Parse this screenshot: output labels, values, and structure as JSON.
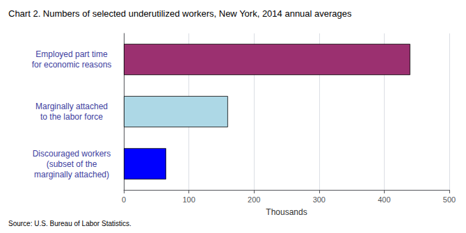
{
  "chart_data": {
    "type": "bar",
    "orientation": "horizontal",
    "title": "Chart 2. Numbers of selected underutilized workers, New York, 2014 annual averages",
    "source": "Source: U.S. Bureau of Labor Statistics.",
    "categories": [
      "Discouraged workers\n(subset of the\nmarginally attached)",
      "Marginally attached\nto the labor force",
      "Employed part time\nfor economic reasons"
    ],
    "values": [
      65,
      160,
      440
    ],
    "colors": [
      "#0000FF",
      "#ADD8E6",
      "#9B3070"
    ],
    "xlabel": "Thousands",
    "xlim": [
      0,
      500
    ],
    "xticks": [
      0,
      100,
      200,
      300,
      400,
      500
    ],
    "grid": true
  }
}
